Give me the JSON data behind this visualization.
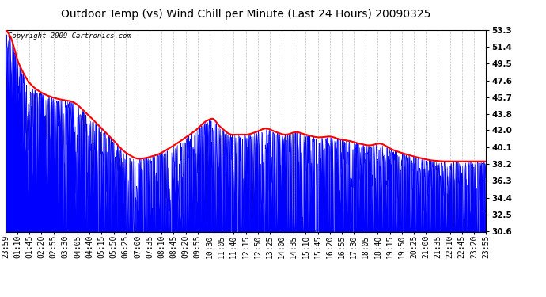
{
  "title": "Outdoor Temp (vs) Wind Chill per Minute (Last 24 Hours) 20090325",
  "copyright_text": "Copyright 2009 Cartronics.com",
  "ylabel_right_ticks": [
    30.6,
    32.5,
    34.4,
    36.3,
    38.2,
    40.1,
    42.0,
    43.8,
    45.7,
    47.6,
    49.5,
    51.4,
    53.3
  ],
  "ymin": 30.6,
  "ymax": 53.3,
  "x_tick_labels": [
    "23:59",
    "01:10",
    "01:45",
    "02:20",
    "02:55",
    "03:30",
    "04:05",
    "04:40",
    "05:15",
    "05:50",
    "06:25",
    "07:00",
    "07:35",
    "08:10",
    "08:45",
    "09:20",
    "09:55",
    "10:30",
    "11:05",
    "11:40",
    "12:15",
    "12:50",
    "13:25",
    "14:00",
    "14:35",
    "15:10",
    "15:45",
    "16:20",
    "16:55",
    "17:30",
    "18:05",
    "18:40",
    "19:15",
    "19:50",
    "20:25",
    "21:00",
    "21:35",
    "22:10",
    "22:45",
    "23:20",
    "23:55"
  ],
  "background_color": "#ffffff",
  "plot_bg_color": "#ffffff",
  "grid_color": "#c0c0c0",
  "blue_line_color": "#0000ff",
  "red_line_color": "#ff0000",
  "title_fontsize": 10,
  "tick_fontsize": 7,
  "copyright_fontsize": 6.5
}
